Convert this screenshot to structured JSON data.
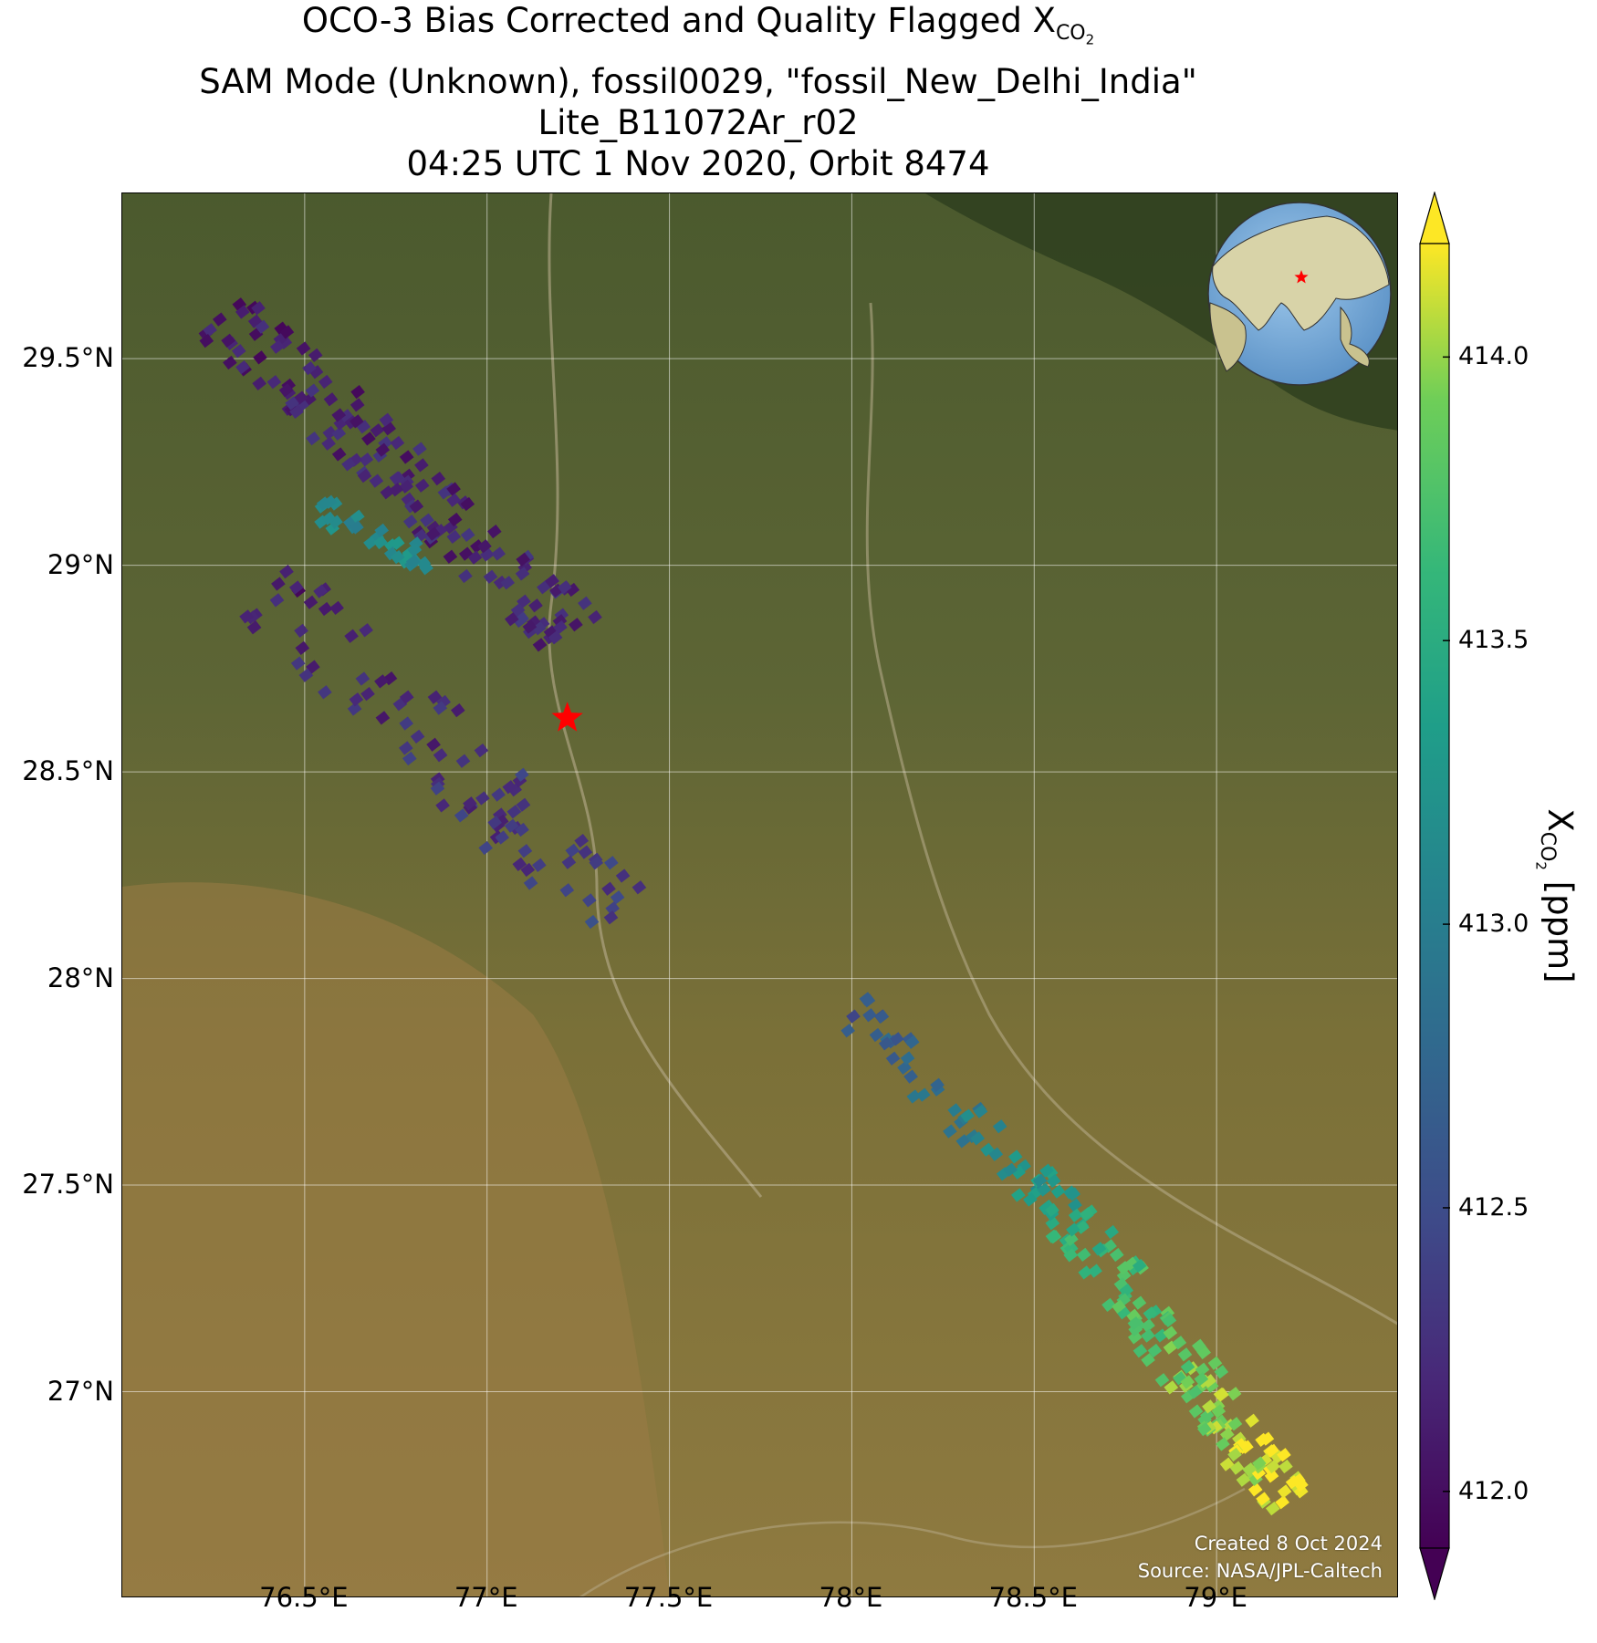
{
  "title": {
    "line1_prefix": "OCO-3 Bias Corrected and Quality Flagged X",
    "line1_sub": "CO",
    "line1_subsub": "2",
    "line2": "SAM Mode (Unknown), fossil0029, \"fossil_New_Delhi_India\"",
    "line3": "Lite_B11072Ar_r02",
    "line4": "04:25 UTC 1 Nov 2020, Orbit 8474"
  },
  "map": {
    "extent": {
      "lon": [
        76.0,
        79.5
      ],
      "lat": [
        26.5,
        29.9
      ]
    },
    "lon_ticks": [
      {
        "value": 76.5,
        "label": "76.5°E"
      },
      {
        "value": 77.0,
        "label": "77°E"
      },
      {
        "value": 77.5,
        "label": "77.5°E"
      },
      {
        "value": 78.0,
        "label": "78°E"
      },
      {
        "value": 78.5,
        "label": "78.5°E"
      },
      {
        "value": 79.0,
        "label": "79°E"
      }
    ],
    "lat_ticks": [
      {
        "value": 29.5,
        "label": "29.5°N"
      },
      {
        "value": 29.0,
        "label": "29°N"
      },
      {
        "value": 28.5,
        "label": "28.5°N"
      },
      {
        "value": 28.0,
        "label": "28°N"
      },
      {
        "value": 27.5,
        "label": "27.5°N"
      },
      {
        "value": 27.0,
        "label": "27°N"
      }
    ],
    "target_marker": {
      "lon": 77.22,
      "lat": 28.63,
      "color": "#ff0000"
    },
    "grid": true,
    "background": "satellite imagery"
  },
  "credit": {
    "created": "Created 8 Oct 2024",
    "source": "Source: NASA/JPL-Caltech"
  },
  "colorbar": {
    "colormap": "viridis",
    "range": [
      411.9,
      414.2
    ],
    "ticks": [
      {
        "value": 414.0,
        "label": "414.0"
      },
      {
        "value": 413.5,
        "label": "413.5"
      },
      {
        "value": 413.0,
        "label": "413.0"
      },
      {
        "value": 412.5,
        "label": "412.5"
      },
      {
        "value": 412.0,
        "label": "412.0"
      }
    ],
    "label_prefix": "X",
    "label_sub": "CO",
    "label_subsub": "2",
    "label_suffix": " [ppm]"
  },
  "chart_data": {
    "type": "scatter",
    "swaths": [
      {
        "start": {
          "lon": 76.28,
          "lat": 29.61
        },
        "end": {
          "lon": 77.25,
          "lat": 28.82
        },
        "xco2_start": 412.1,
        "xco2_end": 412.2
      },
      {
        "start": {
          "lon": 76.5,
          "lat": 29.15
        },
        "end": {
          "lon": 76.85,
          "lat": 29.0
        },
        "xco2_start": 413.1,
        "xco2_end": 413.2
      },
      {
        "start": {
          "lon": 76.4,
          "lat": 28.95
        },
        "end": {
          "lon": 77.35,
          "lat": 28.15
        },
        "xco2_start": 412.1,
        "xco2_end": 412.4
      },
      {
        "start": {
          "lon": 78.0,
          "lat": 27.92
        },
        "end": {
          "lon": 78.6,
          "lat": 27.42
        },
        "xco2_start": 412.6,
        "xco2_end": 413.4
      },
      {
        "start": {
          "lon": 78.6,
          "lat": 27.42
        },
        "end": {
          "lon": 79.2,
          "lat": 26.73
        },
        "xco2_start": 413.5,
        "xco2_end": 414.2
      }
    ],
    "inset_globe": {
      "lon": 77.22,
      "lat": 28.63
    }
  }
}
